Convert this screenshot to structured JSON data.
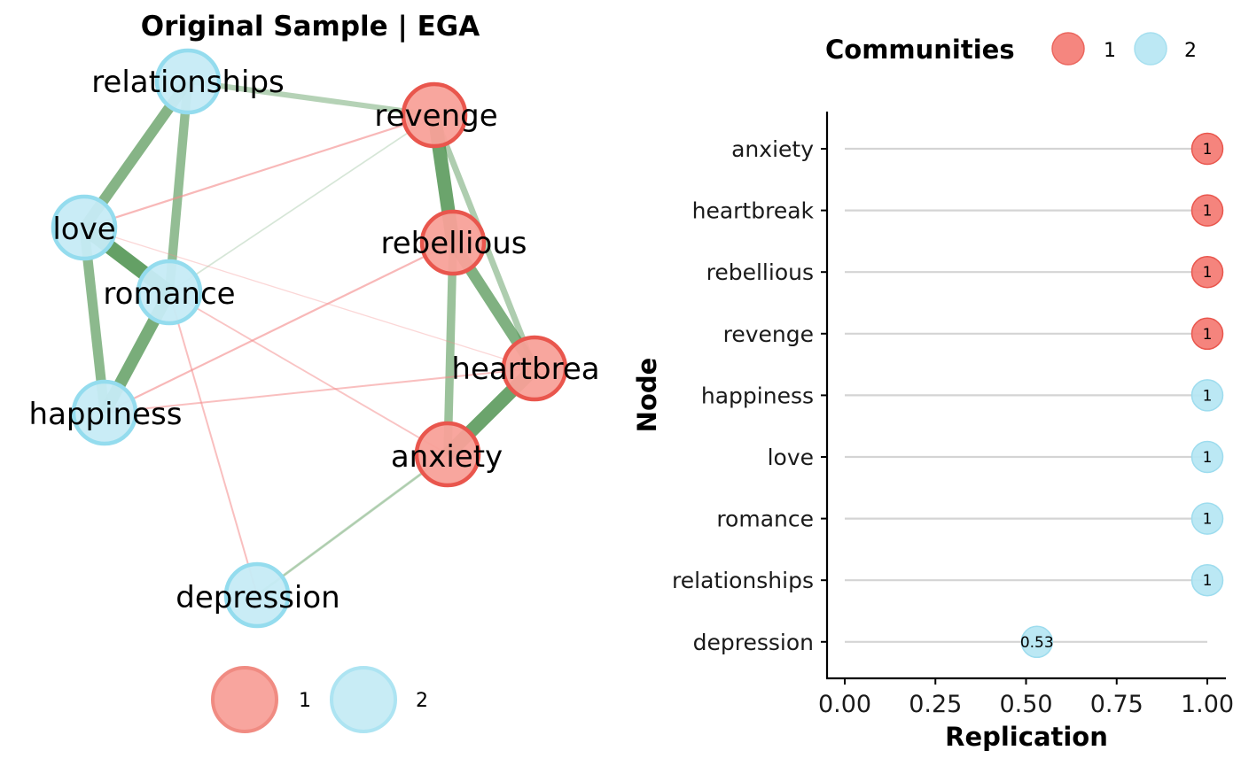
{
  "chart_data": [
    {
      "type": "network",
      "title": "Original Sample | EGA",
      "nodes": [
        {
          "id": "relationships",
          "label": "relationships",
          "community": 2
        },
        {
          "id": "revenge",
          "label": "revenge",
          "community": 1
        },
        {
          "id": "love",
          "label": "love",
          "community": 2
        },
        {
          "id": "rebellious",
          "label": "rebellious",
          "community": 1
        },
        {
          "id": "romance",
          "label": "romance",
          "community": 2
        },
        {
          "id": "heartbreak",
          "label": "heartbrea",
          "community": 1
        },
        {
          "id": "happiness",
          "label": "happiness",
          "community": 2
        },
        {
          "id": "anxiety",
          "label": "anxiety",
          "community": 1
        },
        {
          "id": "depression",
          "label": "depression",
          "community": 2
        }
      ],
      "edges": [
        {
          "source": "love",
          "target": "romance",
          "weight": 0.9,
          "sign": "positive"
        },
        {
          "source": "revenge",
          "target": "rebellious",
          "weight": 0.85,
          "sign": "positive"
        },
        {
          "source": "anxiety",
          "target": "heartbreak",
          "weight": 0.85,
          "sign": "positive"
        },
        {
          "source": "romance",
          "target": "happiness",
          "weight": 0.75,
          "sign": "positive"
        },
        {
          "source": "rebellious",
          "target": "heartbreak",
          "weight": 0.7,
          "sign": "positive"
        },
        {
          "source": "love",
          "target": "relationships",
          "weight": 0.65,
          "sign": "positive"
        },
        {
          "source": "love",
          "target": "happiness",
          "weight": 0.6,
          "sign": "positive"
        },
        {
          "source": "relationships",
          "target": "romance",
          "weight": 0.55,
          "sign": "positive"
        },
        {
          "source": "rebellious",
          "target": "anxiety",
          "weight": 0.5,
          "sign": "positive"
        },
        {
          "source": "revenge",
          "target": "heartbreak",
          "weight": 0.35,
          "sign": "positive"
        },
        {
          "source": "relationships",
          "target": "revenge",
          "weight": 0.3,
          "sign": "positive"
        },
        {
          "source": "anxiety",
          "target": "depression",
          "weight": 0.12,
          "sign": "positive"
        },
        {
          "source": "depression",
          "target": "anxiety",
          "weight": 0.06,
          "sign": "positive"
        },
        {
          "source": "romance",
          "target": "revenge",
          "weight": 0.04,
          "sign": "positive"
        },
        {
          "source": "love",
          "target": "revenge",
          "weight": 0.3,
          "sign": "negative"
        },
        {
          "source": "happiness",
          "target": "rebellious",
          "weight": 0.3,
          "sign": "negative"
        },
        {
          "source": "happiness",
          "target": "heartbreak",
          "weight": 0.25,
          "sign": "negative"
        },
        {
          "source": "romance",
          "target": "anxiety",
          "weight": 0.22,
          "sign": "negative"
        },
        {
          "source": "romance",
          "target": "depression",
          "weight": 0.25,
          "sign": "negative"
        },
        {
          "source": "love",
          "target": "heartbreak",
          "weight": 0.08,
          "sign": "negative"
        }
      ],
      "legend": {
        "entries": [
          "1",
          "2"
        ],
        "position": "bottom"
      }
    },
    {
      "type": "dot",
      "xlabel": "Replication",
      "ylabel": "Node",
      "xlim": [
        0,
        1
      ],
      "xticks": [
        "0.00",
        "0.25",
        "0.50",
        "0.75",
        "1.00"
      ],
      "categories": [
        "anxiety",
        "heartbreak",
        "rebellious",
        "revenge",
        "happiness",
        "love",
        "romance",
        "relationships",
        "depression"
      ],
      "values": [
        1,
        1,
        1,
        1,
        1,
        1,
        1,
        1,
        0.53
      ],
      "value_labels": [
        "1",
        "1",
        "1",
        "1",
        "1",
        "1",
        "1",
        "1",
        "0.53"
      ],
      "communities": [
        1,
        1,
        1,
        1,
        2,
        2,
        2,
        2,
        2
      ],
      "legend": {
        "title": "Communities",
        "entries": [
          "1",
          "2"
        ],
        "position": "top"
      }
    }
  ],
  "colors": {
    "community_1_fill": "#f8a199",
    "community_1_stroke": "#e9564d",
    "community_2_fill": "#c6ebf5",
    "community_2_stroke": "#94dcee",
    "positive_edge": "#4f9350",
    "negative_edge": "#f48b8b",
    "stem": "#d4d4d4",
    "axis": "#000000"
  }
}
